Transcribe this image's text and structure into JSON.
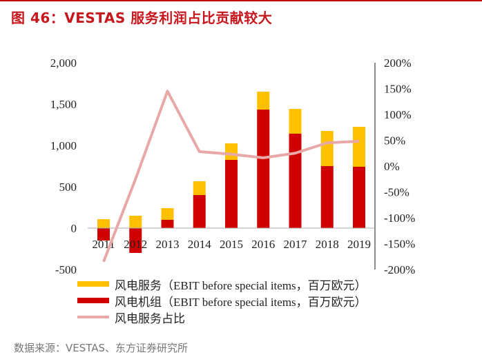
{
  "title": "图 46：VESTAS 服务利润占比贡献较大",
  "source": "数据来源：VESTAS、东方证券研究所",
  "chart_data": {
    "type": "bar",
    "stacked": true,
    "categories": [
      "2011",
      "2012",
      "2013",
      "2014",
      "2015",
      "2016",
      "2017",
      "2018",
      "2019"
    ],
    "series": [
      {
        "name": "风电服务（EBIT before special items，百万欧元）",
        "type": "bar",
        "axis": "left",
        "color": "#ffc000",
        "values": [
          108,
          150,
          142,
          167,
          200,
          217,
          300,
          425,
          483
        ]
      },
      {
        "name": "风电机组（EBIT before special items，百万欧元）",
        "type": "bar",
        "axis": "left",
        "color": "#d00000",
        "values": [
          -150,
          -300,
          100,
          400,
          825,
          1433,
          1142,
          750,
          742
        ]
      },
      {
        "name": "风电服务占比",
        "type": "line",
        "axis": "right",
        "color": "#e8a8a8",
        "values": [
          -185,
          -25,
          145,
          28,
          23,
          16,
          25,
          45,
          48
        ]
      }
    ],
    "left_axis": {
      "ylim": [
        -500,
        2000
      ],
      "ticks": [
        "-500",
        "0",
        "500",
        "1,000",
        "1,500",
        "2,000"
      ]
    },
    "right_axis": {
      "ylim": [
        -200,
        200
      ],
      "ticks": [
        "-200%",
        "-150%",
        "-100%",
        "-50%",
        "0%",
        "50%",
        "100%",
        "150%",
        "200%"
      ]
    },
    "grid": false,
    "legend": "bottom"
  }
}
